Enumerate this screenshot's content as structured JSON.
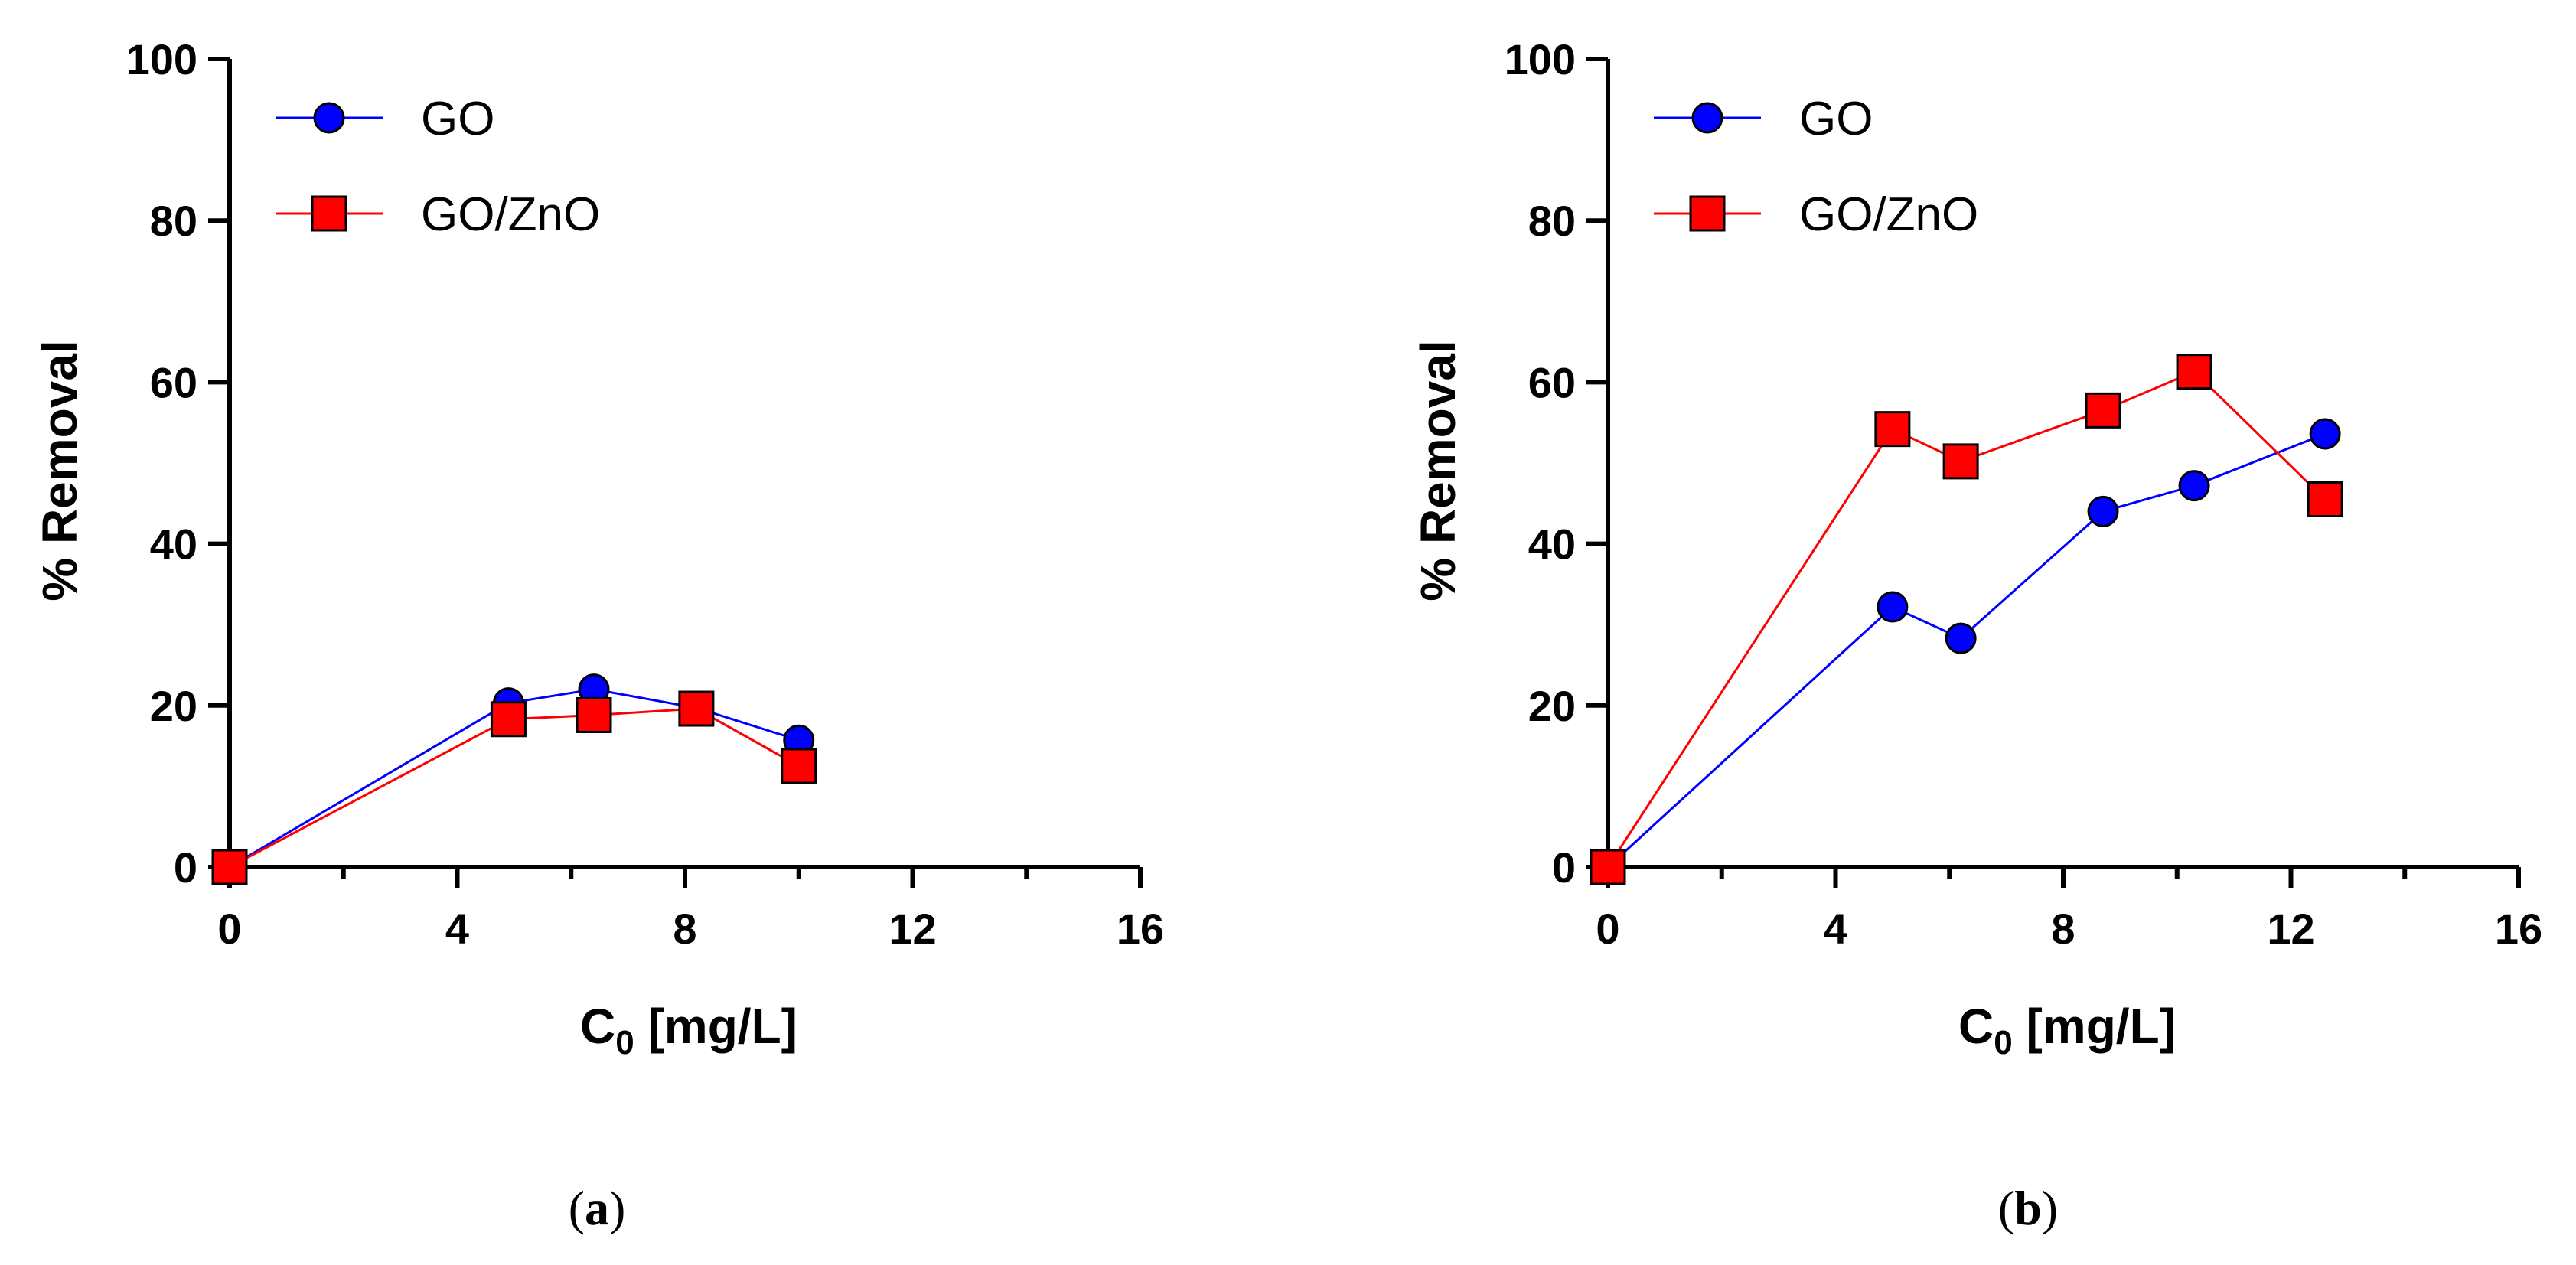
{
  "chart_data": [
    {
      "type": "line",
      "caption": "(a)",
      "caption_letter": "a",
      "xlabel_main": "C",
      "xlabel_sub": "0",
      "xlabel_unit": " [mg/L]",
      "ylabel": "% Removal",
      "xlim": [
        0,
        16
      ],
      "ylim": [
        0,
        100
      ],
      "xticks": [
        0,
        4,
        8,
        12,
        16
      ],
      "xtick_labels": [
        "0",
        "4",
        "8",
        "12",
        "16"
      ],
      "xminor": [
        2,
        6,
        10,
        14
      ],
      "yticks": [
        0,
        20,
        40,
        60,
        80,
        100
      ],
      "ytick_labels": [
        "0",
        "20",
        "40",
        "60",
        "80",
        "100"
      ],
      "legend_position": "top-left",
      "series": [
        {
          "name": "GO",
          "marker": "circle",
          "color": "#0000ff",
          "x": [
            0,
            4.9,
            6.4,
            8.2,
            10.0
          ],
          "y": [
            0,
            20.3,
            22.0,
            19.7,
            15.7
          ]
        },
        {
          "name": "GO/ZnO",
          "marker": "square",
          "color": "#ff0000",
          "x": [
            0,
            4.9,
            6.4,
            8.2,
            10.0
          ],
          "y": [
            0,
            18.3,
            18.8,
            19.6,
            12.5
          ]
        }
      ]
    },
    {
      "type": "line",
      "caption": "(b)",
      "caption_letter": "b",
      "xlabel_main": "C",
      "xlabel_sub": "0",
      "xlabel_unit": " [mg/L]",
      "ylabel": "% Removal",
      "xlim": [
        0,
        16
      ],
      "ylim": [
        0,
        100
      ],
      "xticks": [
        0,
        4,
        8,
        12,
        16
      ],
      "xtick_labels": [
        "0",
        "4",
        "8",
        "12",
        "16"
      ],
      "xminor": [
        2,
        6,
        10,
        14
      ],
      "yticks": [
        0,
        20,
        40,
        60,
        80,
        100
      ],
      "ytick_labels": [
        "0",
        "20",
        "40",
        "60",
        "80",
        "100"
      ],
      "legend_position": "top-left",
      "series": [
        {
          "name": "GO",
          "marker": "circle",
          "color": "#0000ff",
          "x": [
            0,
            5.0,
            6.2,
            8.7,
            10.3,
            12.6
          ],
          "y": [
            0,
            32.2,
            28.3,
            44.0,
            47.2,
            53.6
          ]
        },
        {
          "name": "GO/ZnO",
          "marker": "square",
          "color": "#ff0000",
          "x": [
            0,
            5.0,
            6.2,
            8.7,
            10.3,
            12.6
          ],
          "y": [
            0,
            54.2,
            50.2,
            56.5,
            61.3,
            45.5
          ]
        }
      ]
    }
  ]
}
